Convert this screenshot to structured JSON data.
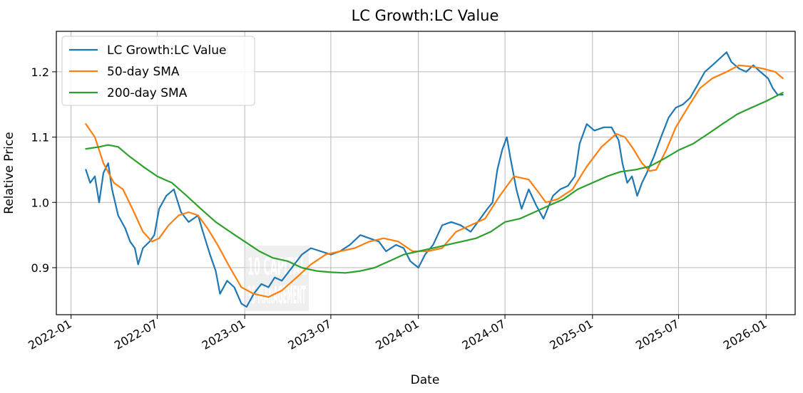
{
  "chart_data": {
    "type": "line",
    "title": "LC Growth:LC Value",
    "xlabel": "Date",
    "ylabel": "Relative Price",
    "xlim": [
      "2021-12-01",
      "2026-03-03"
    ],
    "ylim": [
      0.828,
      1.262
    ],
    "x_ticks": [
      "2022-01",
      "2022-07",
      "2023-01",
      "2023-07",
      "2024-01",
      "2024-07",
      "2025-01",
      "2025-07",
      "2026-01"
    ],
    "y_ticks": [
      0.9,
      1.0,
      1.1,
      1.2
    ],
    "y_tick_labels": [
      "0.9",
      "1.0",
      "1.1",
      "1.2"
    ],
    "grid": true,
    "legend_position": "top-left",
    "watermark": {
      "text": [
        "10 CAPITAL",
        "35 MANAGEMENT"
      ]
    },
    "series": [
      {
        "name": "LC Growth:LC Value",
        "color": "#1f77b4",
        "points": [
          [
            "2022-02-01",
            1.05
          ],
          [
            "2022-02-10",
            1.03
          ],
          [
            "2022-02-20",
            1.04
          ],
          [
            "2022-03-01",
            1.0
          ],
          [
            "2022-03-10",
            1.045
          ],
          [
            "2022-03-20",
            1.06
          ],
          [
            "2022-03-28",
            1.02
          ],
          [
            "2022-04-10",
            0.98
          ],
          [
            "2022-04-25",
            0.96
          ],
          [
            "2022-05-05",
            0.94
          ],
          [
            "2022-05-15",
            0.93
          ],
          [
            "2022-05-22",
            0.905
          ],
          [
            "2022-06-01",
            0.93
          ],
          [
            "2022-06-15",
            0.94
          ],
          [
            "2022-06-25",
            0.95
          ],
          [
            "2022-07-05",
            0.99
          ],
          [
            "2022-07-20",
            1.01
          ],
          [
            "2022-08-05",
            1.02
          ],
          [
            "2022-08-20",
            0.985
          ],
          [
            "2022-09-05",
            0.97
          ],
          [
            "2022-09-25",
            0.98
          ],
          [
            "2022-10-05",
            0.955
          ],
          [
            "2022-10-20",
            0.92
          ],
          [
            "2022-11-01",
            0.895
          ],
          [
            "2022-11-10",
            0.86
          ],
          [
            "2022-11-25",
            0.88
          ],
          [
            "2022-12-10",
            0.87
          ],
          [
            "2022-12-25",
            0.845
          ],
          [
            "2023-01-05",
            0.84
          ],
          [
            "2023-01-20",
            0.86
          ],
          [
            "2023-02-05",
            0.875
          ],
          [
            "2023-02-20",
            0.87
          ],
          [
            "2023-03-05",
            0.885
          ],
          [
            "2023-03-20",
            0.88
          ],
          [
            "2023-04-10",
            0.9
          ],
          [
            "2023-05-01",
            0.92
          ],
          [
            "2023-05-20",
            0.93
          ],
          [
            "2023-06-10",
            0.925
          ],
          [
            "2023-07-01",
            0.92
          ],
          [
            "2023-07-20",
            0.925
          ],
          [
            "2023-08-10",
            0.935
          ],
          [
            "2023-09-01",
            0.95
          ],
          [
            "2023-09-20",
            0.945
          ],
          [
            "2023-10-10",
            0.94
          ],
          [
            "2023-10-25",
            0.925
          ],
          [
            "2023-11-15",
            0.935
          ],
          [
            "2023-12-01",
            0.93
          ],
          [
            "2023-12-15",
            0.91
          ],
          [
            "2024-01-01",
            0.9
          ],
          [
            "2024-01-15",
            0.92
          ],
          [
            "2024-02-01",
            0.935
          ],
          [
            "2024-02-20",
            0.965
          ],
          [
            "2024-03-10",
            0.97
          ],
          [
            "2024-03-30",
            0.965
          ],
          [
            "2024-04-20",
            0.955
          ],
          [
            "2024-05-10",
            0.975
          ],
          [
            "2024-05-25",
            0.99
          ],
          [
            "2024-06-05",
            1.0
          ],
          [
            "2024-06-15",
            1.05
          ],
          [
            "2024-06-25",
            1.08
          ],
          [
            "2024-07-05",
            1.1
          ],
          [
            "2024-07-12",
            1.07
          ],
          [
            "2024-07-25",
            1.02
          ],
          [
            "2024-08-05",
            0.99
          ],
          [
            "2024-08-20",
            1.02
          ],
          [
            "2024-09-05",
            0.995
          ],
          [
            "2024-09-20",
            0.975
          ],
          [
            "2024-10-10",
            1.01
          ],
          [
            "2024-10-25",
            1.02
          ],
          [
            "2024-11-10",
            1.025
          ],
          [
            "2024-11-25",
            1.04
          ],
          [
            "2024-12-05",
            1.09
          ],
          [
            "2024-12-20",
            1.12
          ],
          [
            "2025-01-05",
            1.11
          ],
          [
            "2025-01-25",
            1.115
          ],
          [
            "2025-02-10",
            1.115
          ],
          [
            "2025-02-25",
            1.095
          ],
          [
            "2025-03-05",
            1.06
          ],
          [
            "2025-03-15",
            1.03
          ],
          [
            "2025-03-25",
            1.04
          ],
          [
            "2025-04-05",
            1.01
          ],
          [
            "2025-04-15",
            1.03
          ],
          [
            "2025-04-25",
            1.045
          ],
          [
            "2025-05-10",
            1.07
          ],
          [
            "2025-05-25",
            1.1
          ],
          [
            "2025-06-10",
            1.13
          ],
          [
            "2025-06-25",
            1.145
          ],
          [
            "2025-07-10",
            1.15
          ],
          [
            "2025-07-25",
            1.16
          ],
          [
            "2025-08-10",
            1.18
          ],
          [
            "2025-08-25",
            1.2
          ],
          [
            "2025-09-10",
            1.21
          ],
          [
            "2025-09-25",
            1.22
          ],
          [
            "2025-10-10",
            1.23
          ],
          [
            "2025-10-20",
            1.215
          ],
          [
            "2025-11-05",
            1.205
          ],
          [
            "2025-11-20",
            1.2
          ],
          [
            "2025-12-05",
            1.21
          ],
          [
            "2025-12-20",
            1.2
          ],
          [
            "2026-01-05",
            1.19
          ],
          [
            "2026-01-15",
            1.175
          ],
          [
            "2026-01-25",
            1.165
          ],
          [
            "2026-02-05",
            1.165
          ]
        ]
      },
      {
        "name": "50-day SMA",
        "color": "#ff7f0e",
        "points": [
          [
            "2022-02-01",
            1.12
          ],
          [
            "2022-02-20",
            1.1
          ],
          [
            "2022-03-10",
            1.06
          ],
          [
            "2022-04-01",
            1.03
          ],
          [
            "2022-04-20",
            1.02
          ],
          [
            "2022-05-10",
            0.99
          ],
          [
            "2022-06-01",
            0.955
          ],
          [
            "2022-06-20",
            0.94
          ],
          [
            "2022-07-05",
            0.945
          ],
          [
            "2022-07-25",
            0.965
          ],
          [
            "2022-08-15",
            0.98
          ],
          [
            "2022-09-05",
            0.985
          ],
          [
            "2022-09-25",
            0.98
          ],
          [
            "2022-10-15",
            0.96
          ],
          [
            "2022-11-05",
            0.935
          ],
          [
            "2022-12-01",
            0.9
          ],
          [
            "2022-12-25",
            0.87
          ],
          [
            "2023-01-20",
            0.86
          ],
          [
            "2023-02-20",
            0.855
          ],
          [
            "2023-03-20",
            0.865
          ],
          [
            "2023-04-20",
            0.885
          ],
          [
            "2023-05-20",
            0.905
          ],
          [
            "2023-06-20",
            0.92
          ],
          [
            "2023-07-20",
            0.925
          ],
          [
            "2023-08-20",
            0.93
          ],
          [
            "2023-09-20",
            0.94
          ],
          [
            "2023-10-20",
            0.945
          ],
          [
            "2023-11-20",
            0.94
          ],
          [
            "2023-12-20",
            0.925
          ],
          [
            "2024-01-20",
            0.925
          ],
          [
            "2024-02-20",
            0.93
          ],
          [
            "2024-03-20",
            0.955
          ],
          [
            "2024-04-20",
            0.965
          ],
          [
            "2024-05-20",
            0.975
          ],
          [
            "2024-06-20",
            1.01
          ],
          [
            "2024-07-20",
            1.04
          ],
          [
            "2024-08-20",
            1.035
          ],
          [
            "2024-09-10",
            1.015
          ],
          [
            "2024-09-25",
            1.0
          ],
          [
            "2024-10-20",
            1.005
          ],
          [
            "2024-11-20",
            1.02
          ],
          [
            "2024-12-20",
            1.055
          ],
          [
            "2025-01-20",
            1.085
          ],
          [
            "2025-02-20",
            1.105
          ],
          [
            "2025-03-10",
            1.1
          ],
          [
            "2025-03-25",
            1.085
          ],
          [
            "2025-04-15",
            1.06
          ],
          [
            "2025-05-01",
            1.048
          ],
          [
            "2025-05-15",
            1.05
          ],
          [
            "2025-06-05",
            1.08
          ],
          [
            "2025-06-25",
            1.115
          ],
          [
            "2025-07-20",
            1.145
          ],
          [
            "2025-08-15",
            1.175
          ],
          [
            "2025-09-10",
            1.19
          ],
          [
            "2025-10-10",
            1.2
          ],
          [
            "2025-11-05",
            1.21
          ],
          [
            "2025-12-01",
            1.208
          ],
          [
            "2025-12-25",
            1.205
          ],
          [
            "2026-01-20",
            1.2
          ],
          [
            "2026-02-05",
            1.19
          ]
        ]
      },
      {
        "name": "200-day SMA",
        "color": "#2ca02c",
        "points": [
          [
            "2022-02-01",
            1.082
          ],
          [
            "2022-03-01",
            1.085
          ],
          [
            "2022-03-20",
            1.088
          ],
          [
            "2022-04-10",
            1.085
          ],
          [
            "2022-05-01",
            1.072
          ],
          [
            "2022-06-01",
            1.055
          ],
          [
            "2022-07-01",
            1.04
          ],
          [
            "2022-08-01",
            1.03
          ],
          [
            "2022-09-01",
            1.01
          ],
          [
            "2022-10-01",
            0.99
          ],
          [
            "2022-11-01",
            0.97
          ],
          [
            "2022-12-01",
            0.955
          ],
          [
            "2023-01-01",
            0.94
          ],
          [
            "2023-02-01",
            0.925
          ],
          [
            "2023-03-01",
            0.915
          ],
          [
            "2023-04-01",
            0.91
          ],
          [
            "2023-05-01",
            0.9
          ],
          [
            "2023-06-01",
            0.895
          ],
          [
            "2023-07-01",
            0.893
          ],
          [
            "2023-08-01",
            0.892
          ],
          [
            "2023-09-01",
            0.895
          ],
          [
            "2023-10-01",
            0.9
          ],
          [
            "2023-11-01",
            0.91
          ],
          [
            "2023-12-01",
            0.92
          ],
          [
            "2024-01-01",
            0.925
          ],
          [
            "2024-02-01",
            0.93
          ],
          [
            "2024-03-01",
            0.935
          ],
          [
            "2024-04-01",
            0.94
          ],
          [
            "2024-05-01",
            0.945
          ],
          [
            "2024-06-01",
            0.955
          ],
          [
            "2024-07-01",
            0.97
          ],
          [
            "2024-08-01",
            0.975
          ],
          [
            "2024-09-01",
            0.985
          ],
          [
            "2024-10-01",
            0.995
          ],
          [
            "2024-11-01",
            1.005
          ],
          [
            "2024-12-01",
            1.02
          ],
          [
            "2025-01-01",
            1.03
          ],
          [
            "2025-02-01",
            1.04
          ],
          [
            "2025-03-01",
            1.047
          ],
          [
            "2025-04-01",
            1.05
          ],
          [
            "2025-05-01",
            1.055
          ],
          [
            "2025-06-01",
            1.067
          ],
          [
            "2025-07-01",
            1.08
          ],
          [
            "2025-08-01",
            1.09
          ],
          [
            "2025-09-01",
            1.105
          ],
          [
            "2025-10-01",
            1.12
          ],
          [
            "2025-11-01",
            1.135
          ],
          [
            "2025-12-01",
            1.145
          ],
          [
            "2026-01-01",
            1.155
          ],
          [
            "2026-02-05",
            1.168
          ]
        ]
      }
    ]
  }
}
